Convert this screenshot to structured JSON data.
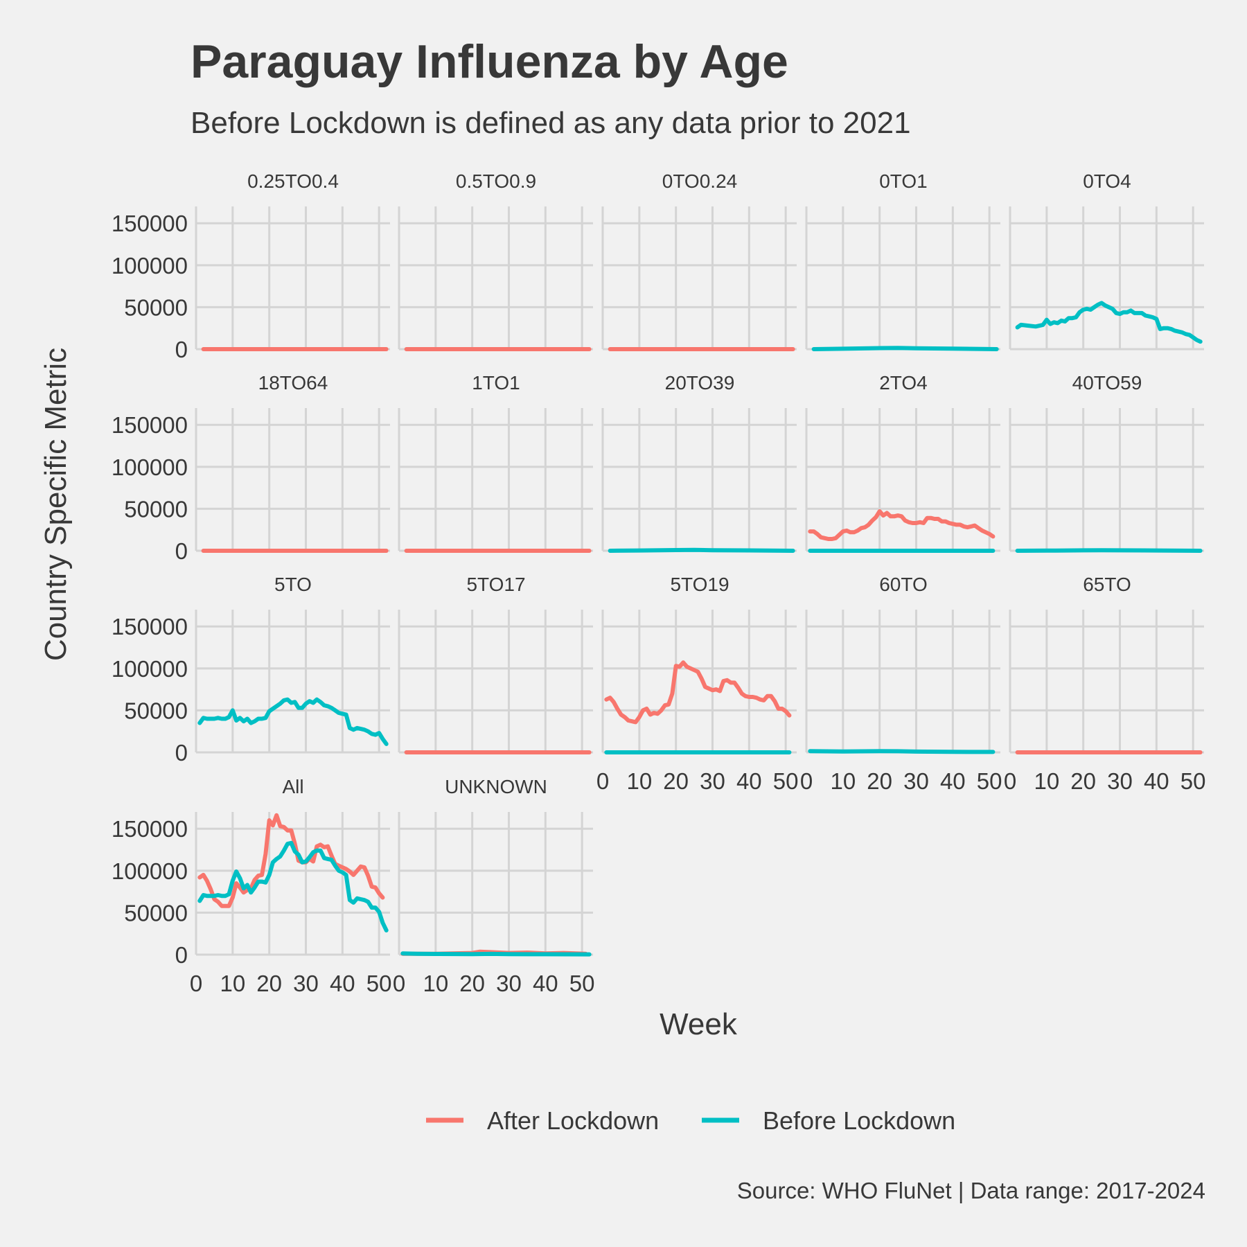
{
  "chart_data": {
    "type": "line",
    "title": "Paraguay Influenza by Age",
    "subtitle": "Before Lockdown is defined as any data prior to 2021",
    "xlabel": "Week",
    "ylabel": "Country Specific Metric",
    "caption": "Source: WHO FluNet | Data range: 2017-2024",
    "xlim": [
      0,
      53
    ],
    "ylim": [
      0,
      170000
    ],
    "x_ticks": [
      0,
      10,
      20,
      30,
      40,
      50
    ],
    "y_ticks": [
      0,
      50000,
      100000,
      150000
    ],
    "grid": true,
    "legend_position": "bottom",
    "legend": [
      {
        "name": "After Lockdown",
        "color": "#F8766D"
      },
      {
        "name": "Before Lockdown",
        "color": "#00BFC4"
      }
    ],
    "panels": [
      {
        "label": "0.25TO0.4",
        "series": [
          {
            "name": "After Lockdown",
            "x": [
              2,
              52
            ],
            "y": [
              0,
              0
            ]
          }
        ]
      },
      {
        "label": "0.5TO0.9",
        "series": [
          {
            "name": "After Lockdown",
            "x": [
              2,
              52
            ],
            "y": [
              0,
              0
            ]
          }
        ]
      },
      {
        "label": "0TO0.24",
        "series": [
          {
            "name": "After Lockdown",
            "x": [
              2,
              52
            ],
            "y": [
              0,
              0
            ]
          }
        ]
      },
      {
        "label": "0TO1",
        "series": [
          {
            "name": "Before Lockdown",
            "x": [
              2,
              10,
              20,
              25,
              30,
              40,
              52
            ],
            "y": [
              0,
              500,
              1200,
              1500,
              1000,
              600,
              0
            ]
          }
        ]
      },
      {
        "label": "0TO4",
        "series": [
          {
            "name": "Before Lockdown",
            "x": [
              2,
              3,
              5,
              7,
              9,
              10,
              11,
              12,
              13,
              14,
              15,
              16,
              17,
              18,
              19,
              20,
              21,
              22,
              23,
              24,
              25,
              26,
              27,
              28,
              29,
              30,
              31,
              32,
              33,
              34,
              35,
              36,
              37,
              38,
              39,
              40,
              41,
              42,
              43,
              44,
              45,
              46,
              47,
              48,
              49,
              50,
              51,
              52
            ],
            "y": [
              26000,
              29000,
              28000,
              27000,
              29000,
              35000,
              30000,
              32000,
              31000,
              34000,
              33000,
              37000,
              37000,
              38000,
              44000,
              47000,
              48000,
              47000,
              50000,
              53000,
              55000,
              52000,
              50000,
              48000,
              43000,
              42000,
              44000,
              44000,
              46000,
              43000,
              43000,
              43000,
              40000,
              39000,
              38000,
              36000,
              24000,
              25000,
              25000,
              24000,
              22000,
              21000,
              20000,
              18000,
              17000,
              14000,
              11000,
              9000
            ]
          }
        ]
      },
      {
        "label": "18TO64",
        "series": [
          {
            "name": "After Lockdown",
            "x": [
              2,
              52
            ],
            "y": [
              0,
              0
            ]
          }
        ]
      },
      {
        "label": "1TO1",
        "series": [
          {
            "name": "After Lockdown",
            "x": [
              2,
              52
            ],
            "y": [
              0,
              0
            ]
          }
        ]
      },
      {
        "label": "20TO39",
        "series": [
          {
            "name": "Before Lockdown",
            "x": [
              2,
              10,
              20,
              25,
              30,
              40,
              52
            ],
            "y": [
              0,
              300,
              800,
              1000,
              700,
              400,
              0
            ]
          }
        ]
      },
      {
        "label": "2TO4",
        "series": [
          {
            "name": "After Lockdown",
            "x": [
              1,
              2,
              3,
              4,
              5,
              6,
              7,
              8,
              9,
              10,
              11,
              12,
              13,
              14,
              15,
              16,
              17,
              18,
              19,
              20,
              21,
              22,
              23,
              24,
              25,
              26,
              27,
              28,
              29,
              30,
              31,
              32,
              33,
              34,
              35,
              36,
              37,
              38,
              39,
              40,
              41,
              42,
              43,
              44,
              45,
              46,
              47,
              48,
              49,
              50,
              51
            ],
            "y": [
              23000,
              23000,
              20000,
              16000,
              15000,
              14000,
              14000,
              15000,
              19000,
              23000,
              24000,
              22000,
              22000,
              24000,
              27000,
              28000,
              31000,
              36000,
              40000,
              47000,
              42000,
              45000,
              41000,
              41000,
              42000,
              41000,
              36000,
              34000,
              33000,
              33000,
              34000,
              33000,
              39000,
              39000,
              38000,
              38000,
              35000,
              35000,
              33000,
              32000,
              31000,
              31000,
              29000,
              28000,
              29000,
              30000,
              27000,
              24000,
              22000,
              20000,
              17000
            ]
          },
          {
            "name": "Before Lockdown",
            "x": [
              1,
              51
            ],
            "y": [
              0,
              0
            ]
          }
        ]
      },
      {
        "label": "40TO59",
        "series": [
          {
            "name": "Before Lockdown",
            "x": [
              2,
              10,
              20,
              25,
              30,
              40,
              52
            ],
            "y": [
              0,
              200,
              500,
              700,
              500,
              300,
              0
            ]
          }
        ]
      },
      {
        "label": "5TO",
        "series": [
          {
            "name": "Before Lockdown",
            "x": [
              1,
              2,
              3,
              4,
              5,
              6,
              7,
              8,
              9,
              10,
              11,
              12,
              13,
              14,
              15,
              16,
              17,
              18,
              19,
              20,
              21,
              22,
              23,
              24,
              25,
              26,
              27,
              28,
              29,
              30,
              31,
              32,
              33,
              34,
              35,
              36,
              37,
              38,
              39,
              40,
              41,
              42,
              43,
              44,
              45,
              46,
              47,
              48,
              49,
              50,
              51,
              52
            ],
            "y": [
              35000,
              41000,
              40000,
              40000,
              40000,
              41000,
              40000,
              40000,
              42000,
              50000,
              38000,
              41000,
              37000,
              40000,
              35000,
              37000,
              40000,
              40000,
              41000,
              49000,
              52000,
              55000,
              58000,
              62000,
              63000,
              59000,
              60000,
              53000,
              53000,
              58000,
              61000,
              59000,
              63000,
              60000,
              56000,
              55000,
              53000,
              50000,
              47000,
              46000,
              45000,
              29000,
              27000,
              29000,
              28000,
              27000,
              25000,
              22000,
              21000,
              23000,
              16000,
              10000
            ]
          }
        ]
      },
      {
        "label": "5TO17",
        "series": [
          {
            "name": "After Lockdown",
            "x": [
              2,
              52
            ],
            "y": [
              0,
              0
            ]
          }
        ]
      },
      {
        "label": "5TO19",
        "series": [
          {
            "name": "After Lockdown",
            "x": [
              1,
              2,
              3,
              4,
              5,
              6,
              7,
              8,
              9,
              10,
              11,
              12,
              13,
              14,
              15,
              16,
              17,
              18,
              19,
              20,
              21,
              22,
              23,
              24,
              25,
              26,
              27,
              28,
              29,
              30,
              31,
              32,
              33,
              34,
              35,
              36,
              37,
              38,
              39,
              40,
              41,
              42,
              43,
              44,
              45,
              46,
              47,
              48,
              49,
              50,
              51
            ],
            "y": [
              63000,
              65000,
              60000,
              52000,
              45000,
              42000,
              38000,
              37000,
              36000,
              42000,
              50000,
              52000,
              45000,
              47000,
              46000,
              50000,
              56000,
              57000,
              70000,
              103000,
              102000,
              107000,
              102000,
              100000,
              98000,
              96000,
              88000,
              78000,
              76000,
              74000,
              75000,
              73000,
              85000,
              86000,
              83000,
              83000,
              77000,
              70000,
              67000,
              66000,
              66000,
              65000,
              63000,
              62000,
              67000,
              67000,
              61000,
              52000,
              52000,
              49000,
              44000
            ]
          },
          {
            "name": "Before Lockdown",
            "x": [
              1,
              51
            ],
            "y": [
              0,
              0
            ]
          }
        ]
      },
      {
        "label": "60TO",
        "series": [
          {
            "name": "Before Lockdown",
            "x": [
              1,
              10,
              20,
              25,
              30,
              40,
              51
            ],
            "y": [
              1500,
              1000,
              1500,
              1300,
              900,
              600,
              500
            ]
          }
        ]
      },
      {
        "label": "65TO",
        "series": [
          {
            "name": "After Lockdown",
            "x": [
              2,
              52
            ],
            "y": [
              0,
              0
            ]
          }
        ]
      },
      {
        "label": "All",
        "series": [
          {
            "name": "After Lockdown",
            "x": [
              1,
              2,
              3,
              4,
              5,
              6,
              7,
              8,
              9,
              10,
              11,
              12,
              13,
              14,
              15,
              16,
              17,
              18,
              19,
              20,
              21,
              22,
              23,
              24,
              25,
              26,
              27,
              28,
              29,
              30,
              31,
              32,
              33,
              34,
              35,
              36,
              37,
              38,
              39,
              40,
              41,
              42,
              43,
              44,
              45,
              46,
              47,
              48,
              49,
              50,
              51
            ],
            "y": [
              92000,
              95000,
              88000,
              78000,
              66000,
              63000,
              58000,
              58000,
              58000,
              68000,
              85000,
              80000,
              74000,
              77000,
              79000,
              89000,
              94000,
              95000,
              120000,
              160000,
              154000,
              166000,
              153000,
              152000,
              148000,
              148000,
              132000,
              112000,
              110000,
              110000,
              114000,
              111000,
              129000,
              131000,
              128000,
              129000,
              118000,
              108000,
              106000,
              104000,
              102000,
              99000,
              95000,
              100000,
              105000,
              104000,
              94000,
              81000,
              80000,
              73000,
              68000
            ]
          },
          {
            "name": "Before Lockdown",
            "x": [
              1,
              2,
              3,
              4,
              5,
              6,
              7,
              8,
              9,
              10,
              11,
              12,
              13,
              14,
              15,
              16,
              17,
              18,
              19,
              20,
              21,
              22,
              23,
              24,
              25,
              26,
              27,
              28,
              29,
              30,
              31,
              32,
              33,
              34,
              35,
              36,
              37,
              38,
              39,
              40,
              41,
              42,
              43,
              44,
              45,
              46,
              47,
              48,
              49,
              50,
              51,
              52
            ],
            "y": [
              64000,
              71000,
              70000,
              70000,
              70000,
              71000,
              70000,
              70000,
              72000,
              88000,
              99000,
              91000,
              79000,
              83000,
              74000,
              80000,
              87000,
              87000,
              86000,
              95000,
              110000,
              114000,
              117000,
              124000,
              132000,
              133000,
              123000,
              119000,
              110000,
              111000,
              116000,
              122000,
              124000,
              124000,
              115000,
              114000,
              113000,
              106000,
              100000,
              98000,
              95000,
              65000,
              62000,
              67000,
              66000,
              65000,
              63000,
              56000,
              56000,
              51000,
              38000,
              29000
            ]
          }
        ]
      },
      {
        "label": "UNKNOWN",
        "series": [
          {
            "name": "After Lockdown",
            "x": [
              1,
              10,
              20,
              22,
              25,
              30,
              35,
              40,
              45,
              51
            ],
            "y": [
              1000,
              1000,
              2000,
              3500,
              3000,
              2000,
              2500,
              1500,
              2000,
              1000
            ]
          },
          {
            "name": "Before Lockdown",
            "x": [
              1,
              5,
              10,
              20,
              25,
              30,
              40,
              52
            ],
            "y": [
              1500,
              1000,
              800,
              700,
              900,
              600,
              500,
              300
            ]
          }
        ]
      }
    ]
  }
}
